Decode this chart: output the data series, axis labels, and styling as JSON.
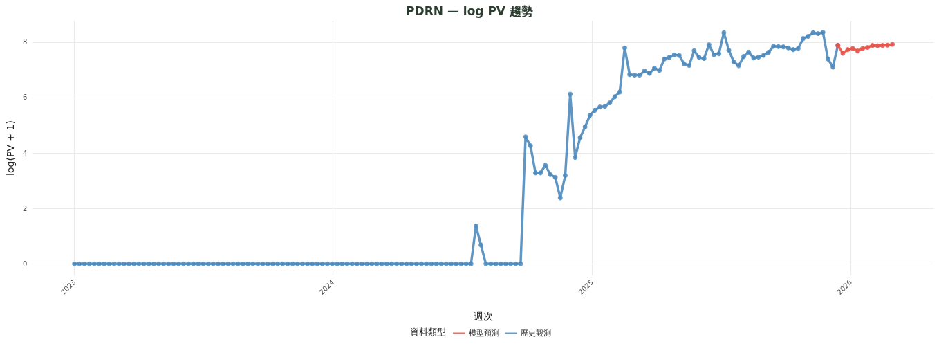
{
  "chart_data": {
    "type": "line",
    "title": "PDRN — log PV 趨勢",
    "xlabel": "週次",
    "ylabel": "log(PV + 1)",
    "legend_title": "資料類型",
    "x": [
      "2023-01-01",
      "2023-01-08",
      "2023-01-15",
      "2023-01-22",
      "2023-01-29",
      "2023-02-05",
      "2023-02-12",
      "2023-02-19",
      "2023-02-26",
      "2023-03-05",
      "2023-03-12",
      "2023-03-19",
      "2023-03-26",
      "2023-04-02",
      "2023-04-09",
      "2023-04-16",
      "2023-04-23",
      "2023-04-30",
      "2023-05-07",
      "2023-05-14",
      "2023-05-21",
      "2023-05-28",
      "2023-06-04",
      "2023-06-11",
      "2023-06-18",
      "2023-06-25",
      "2023-07-02",
      "2023-07-09",
      "2023-07-16",
      "2023-07-23",
      "2023-07-30",
      "2023-08-06",
      "2023-08-13",
      "2023-08-20",
      "2023-08-27",
      "2023-09-03",
      "2023-09-10",
      "2023-09-17",
      "2023-09-24",
      "2023-10-01",
      "2023-10-08",
      "2023-10-15",
      "2023-10-22",
      "2023-10-29",
      "2023-11-05",
      "2023-11-12",
      "2023-11-19",
      "2023-11-26",
      "2023-12-03",
      "2023-12-10",
      "2023-12-17",
      "2023-12-24",
      "2023-12-31",
      "2024-01-07",
      "2024-01-14",
      "2024-01-21",
      "2024-01-28",
      "2024-02-04",
      "2024-02-11",
      "2024-02-18",
      "2024-02-25",
      "2024-03-03",
      "2024-03-10",
      "2024-03-17",
      "2024-03-24",
      "2024-03-31",
      "2024-04-07",
      "2024-04-14",
      "2024-04-21",
      "2024-04-28",
      "2024-05-05",
      "2024-05-12",
      "2024-05-19",
      "2024-05-26",
      "2024-06-02",
      "2024-06-09",
      "2024-06-16",
      "2024-06-23",
      "2024-06-30",
      "2024-07-07",
      "2024-07-14",
      "2024-07-21",
      "2024-07-28",
      "2024-08-04",
      "2024-08-11",
      "2024-08-18",
      "2024-08-25",
      "2024-09-01",
      "2024-09-08",
      "2024-09-15",
      "2024-09-22",
      "2024-09-29",
      "2024-10-06",
      "2024-10-13",
      "2024-10-20",
      "2024-10-27",
      "2024-11-03",
      "2024-11-10",
      "2024-11-17",
      "2024-11-24",
      "2024-12-01",
      "2024-12-08",
      "2024-12-15",
      "2024-12-22",
      "2024-12-29",
      "2025-01-05",
      "2025-01-12",
      "2025-01-19",
      "2025-01-26",
      "2025-02-02",
      "2025-02-09",
      "2025-02-16",
      "2025-02-23",
      "2025-03-02",
      "2025-03-09",
      "2025-03-16",
      "2025-03-23",
      "2025-03-30",
      "2025-04-06",
      "2025-04-13",
      "2025-04-20",
      "2025-04-27",
      "2025-05-04",
      "2025-05-11",
      "2025-05-18",
      "2025-05-25",
      "2025-06-01",
      "2025-06-08",
      "2025-06-15",
      "2025-06-22",
      "2025-06-29",
      "2025-07-06",
      "2025-07-13",
      "2025-07-20",
      "2025-07-27",
      "2025-08-03",
      "2025-08-10",
      "2025-08-17",
      "2025-08-24",
      "2025-08-31",
      "2025-09-07",
      "2025-09-14",
      "2025-09-21",
      "2025-09-28",
      "2025-10-05",
      "2025-10-12",
      "2025-10-19",
      "2025-10-26",
      "2025-11-02",
      "2025-11-09",
      "2025-11-16",
      "2025-11-23",
      "2025-11-30",
      "2025-12-07",
      "2025-12-14"
    ],
    "series": [
      {
        "name": "模型預測",
        "color": "#e8534a",
        "x": [
          "2025-12-14",
          "2025-12-21",
          "2025-12-28",
          "2026-01-04",
          "2026-01-11",
          "2026-01-18",
          "2026-01-25",
          "2026-02-01",
          "2026-02-08",
          "2026-02-15",
          "2026-02-22",
          "2026-03-01"
        ],
        "values": [
          7.88,
          7.6,
          7.73,
          7.77,
          7.68,
          7.77,
          7.81,
          7.88,
          7.87,
          7.88,
          7.89,
          7.92
        ]
      },
      {
        "name": "歷史觀測",
        "color": "#4f8bbd",
        "values": [
          0,
          0,
          0,
          0,
          0,
          0,
          0,
          0,
          0,
          0,
          0,
          0,
          0,
          0,
          0,
          0,
          0,
          0,
          0,
          0,
          0,
          0,
          0,
          0,
          0,
          0,
          0,
          0,
          0,
          0,
          0,
          0,
          0,
          0,
          0,
          0,
          0,
          0,
          0,
          0,
          0,
          0,
          0,
          0,
          0,
          0,
          0,
          0,
          0,
          0,
          0,
          0,
          0,
          0,
          0,
          0,
          0,
          0,
          0,
          0,
          0,
          0,
          0,
          0,
          0,
          0,
          0,
          0,
          0,
          0,
          0,
          0,
          0,
          0,
          0,
          0,
          0,
          0,
          0,
          0,
          0,
          1.37,
          0.68,
          0,
          0,
          0,
          0,
          0,
          0,
          0,
          0,
          4.58,
          4.26,
          3.28,
          3.28,
          3.55,
          3.22,
          3.12,
          2.38,
          3.18,
          6.12,
          3.84,
          4.55,
          4.94,
          5.36,
          5.54,
          5.66,
          5.68,
          5.81,
          6.03,
          6.2,
          7.79,
          6.83,
          6.81,
          6.81,
          6.96,
          6.87,
          7.06,
          6.98,
          7.39,
          7.45,
          7.54,
          7.52,
          7.21,
          7.16,
          7.69,
          7.45,
          7.41,
          7.91,
          7.54,
          7.58,
          8.34,
          7.71,
          7.29,
          7.15,
          7.48,
          7.64,
          7.43,
          7.46,
          7.52,
          7.63,
          7.85,
          7.84,
          7.83,
          7.79,
          7.73,
          7.77,
          8.13,
          8.21,
          8.34,
          8.31,
          8.35,
          7.39,
          7.1,
          7.88
        ]
      }
    ],
    "xlim": [
      "2022-11-03",
      "2026-04-28"
    ],
    "xticks": [
      {
        "value": "2023-01-01",
        "label": "2023"
      },
      {
        "value": "2024-01-01",
        "label": "2024"
      },
      {
        "value": "2025-01-01",
        "label": "2025"
      },
      {
        "value": "2026-01-01",
        "label": "2026"
      }
    ],
    "ylim": [
      -0.42,
      8.77
    ],
    "yticks": [
      0,
      2,
      4,
      6,
      8
    ],
    "grid": true,
    "legend": "bottom",
    "marker": "circle",
    "line_style": "solid"
  }
}
